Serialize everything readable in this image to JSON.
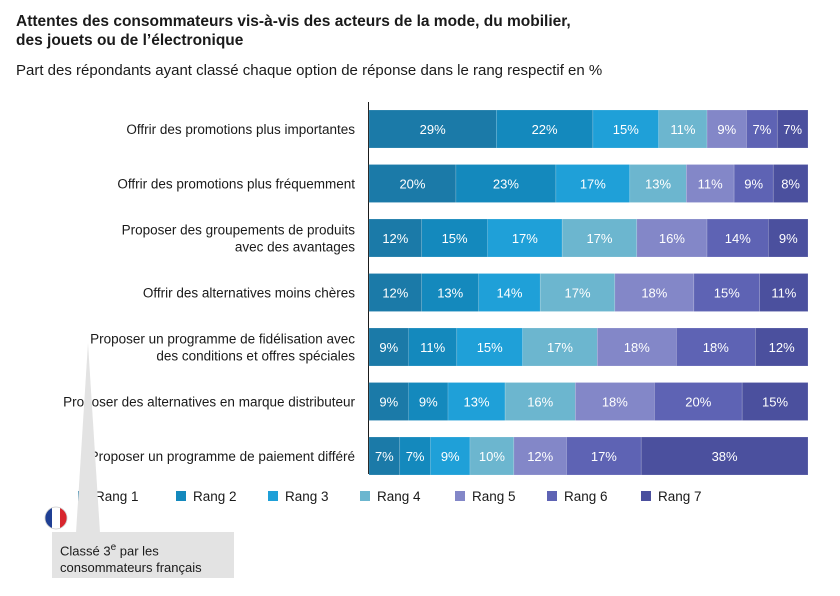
{
  "title": "Attentes des consommateurs vis-à-vis des acteurs de la mode, du mobilier, des jouets ou de l’électronique",
  "subtitle": "Part des répondants ayant classé chaque option de réponse dans le rang respectif en %",
  "callout": {
    "line1_prefix": "Classé 3",
    "line1_sup": "e",
    "line1_suffix": " par les",
    "line2": "consommateurs français",
    "flag_icon": "france-flag-icon"
  },
  "chart_data": {
    "type": "bar",
    "orientation": "horizontal",
    "stacked": true,
    "value_unit": "%",
    "categories": [
      [
        "Offrir des promotions plus importantes"
      ],
      [
        "Offrir des promotions plus fréquemment"
      ],
      [
        "Proposer des groupements de produits",
        "avec des avantages"
      ],
      [
        "Offrir des alternatives moins chères"
      ],
      [
        "Proposer un programme de fidélisation avec",
        "des conditions et offres spéciales"
      ],
      [
        "Proposer des alternatives en marque distributeur"
      ],
      [
        "Proposer un programme de paiement différé"
      ]
    ],
    "series": [
      {
        "name": "Rang 1",
        "color": "#1b7aa8",
        "values": [
          29,
          20,
          12,
          12,
          9,
          9,
          7
        ]
      },
      {
        "name": "Rang 2",
        "color": "#1489bd",
        "values": [
          22,
          23,
          15,
          13,
          11,
          9,
          7
        ]
      },
      {
        "name": "Rang 3",
        "color": "#1fa0d8",
        "values": [
          15,
          17,
          17,
          14,
          15,
          13,
          9
        ]
      },
      {
        "name": "Rang 4",
        "color": "#6cb6cf",
        "values": [
          11,
          13,
          17,
          17,
          17,
          16,
          10
        ]
      },
      {
        "name": "Rang 5",
        "color": "#8387c8",
        "values": [
          9,
          11,
          16,
          18,
          18,
          18,
          12
        ]
      },
      {
        "name": "Rang 6",
        "color": "#5e63b4",
        "values": [
          7,
          9,
          14,
          15,
          18,
          20,
          17
        ]
      },
      {
        "name": "Rang 7",
        "color": "#4b509e",
        "values": [
          7,
          8,
          9,
          11,
          12,
          15,
          38
        ]
      }
    ],
    "legend_position": "bottom"
  }
}
